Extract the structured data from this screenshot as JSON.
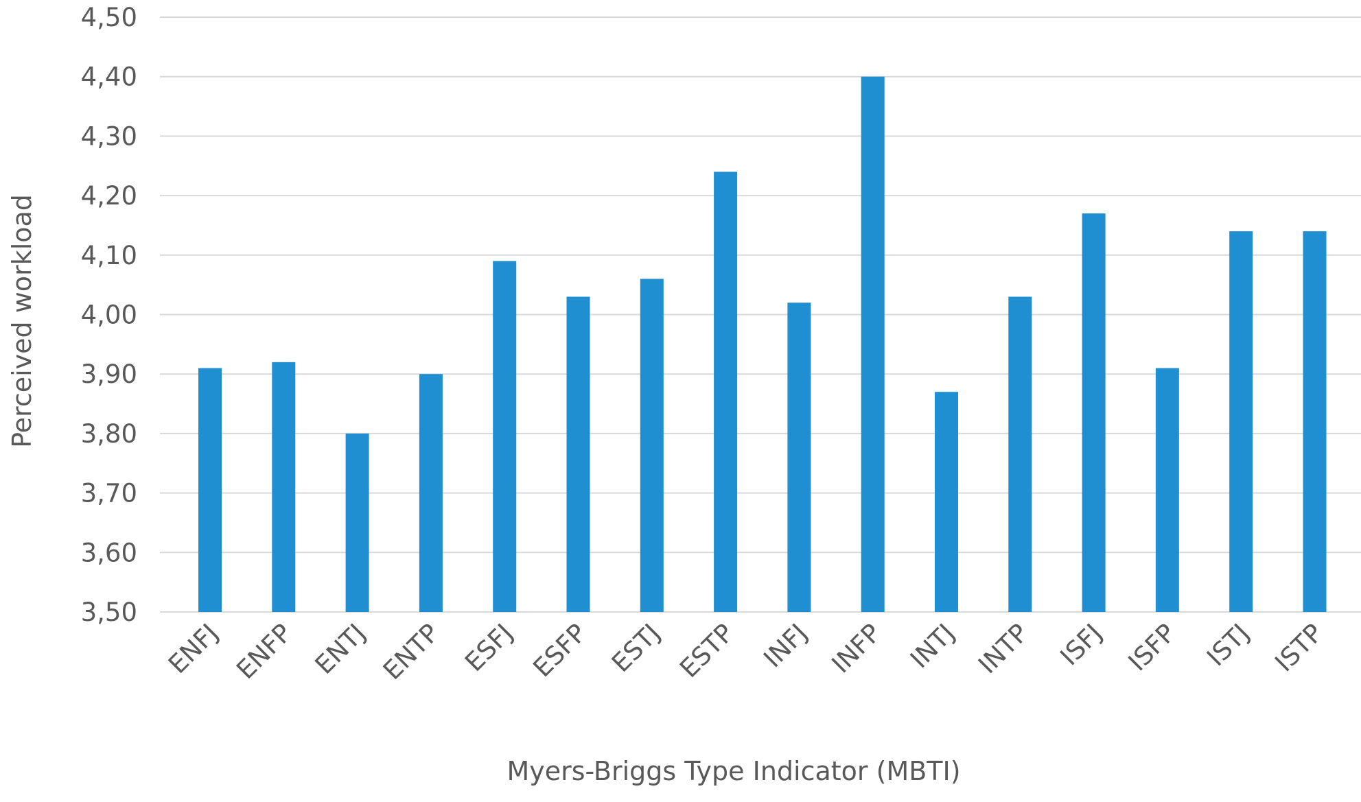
{
  "chart_data": {
    "type": "bar",
    "title": "",
    "xlabel": "Myers-Briggs Type Indicator (MBTI)",
    "ylabel": "Perceived workload",
    "categories": [
      "ENFJ",
      "ENFP",
      "ENTJ",
      "ENTP",
      "ESFJ",
      "ESFP",
      "ESTJ",
      "ESTP",
      "INFJ",
      "INFP",
      "INTJ",
      "INTP",
      "ISFJ",
      "ISFP",
      "ISTJ",
      "ISTP"
    ],
    "values": [
      3.91,
      3.92,
      3.8,
      3.9,
      4.09,
      4.03,
      4.06,
      4.24,
      4.02,
      4.4,
      3.87,
      4.03,
      4.17,
      3.91,
      4.14,
      4.14
    ],
    "ylim": [
      3.5,
      4.5
    ],
    "yticks": [
      3.5,
      3.6,
      3.7,
      3.8,
      3.9,
      4.0,
      4.1,
      4.2,
      4.3,
      4.4,
      4.5
    ],
    "ytick_labels": [
      "3,50",
      "3,60",
      "3,70",
      "3,80",
      "3,90",
      "4,00",
      "4,10",
      "4,20",
      "4,30",
      "4,40",
      "4,50"
    ],
    "bar_color": "#1f8fd2",
    "grid": true,
    "legend": "none"
  }
}
